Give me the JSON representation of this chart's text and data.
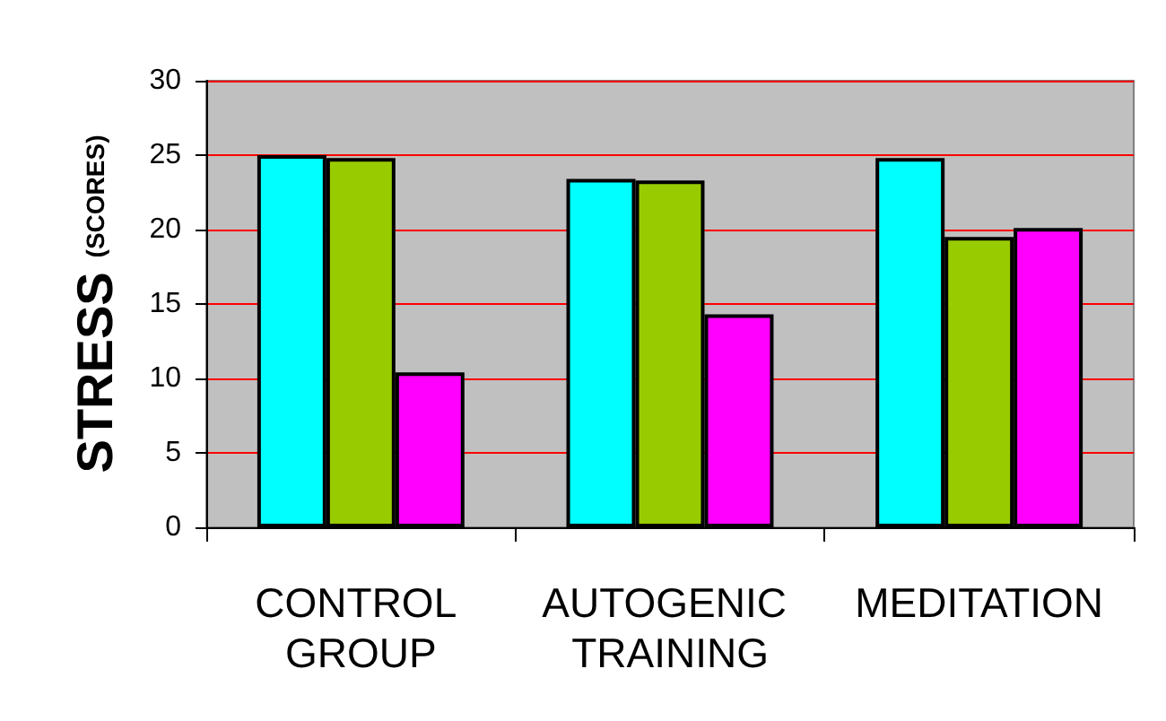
{
  "chart_data": {
    "type": "bar",
    "ylabel": "STRESS (SCORES)",
    "categories": [
      "CONTROL GROUP",
      "AUTOGENIC TRAINING",
      "MEDITATION"
    ],
    "series": [
      {
        "color": "#00ffff",
        "values": [
          25.0,
          23.4,
          24.8
        ]
      },
      {
        "color": "#99cc00",
        "values": [
          24.8,
          23.3,
          19.5
        ]
      },
      {
        "color": "#ff00ff",
        "values": [
          10.4,
          14.3,
          20.1
        ]
      }
    ],
    "ylim": [
      0,
      30
    ],
    "yticks": [
      0,
      5,
      10,
      15,
      20,
      25,
      30
    ],
    "grid": "y"
  }
}
